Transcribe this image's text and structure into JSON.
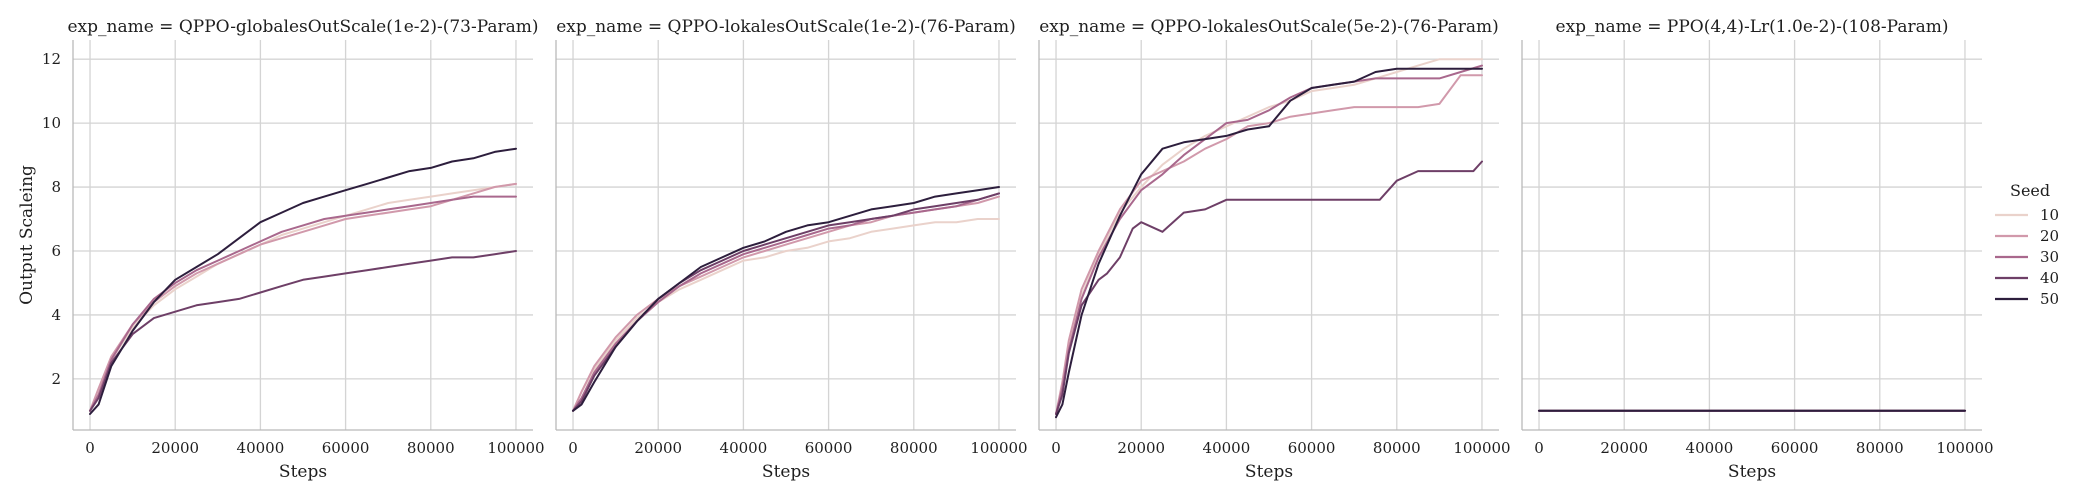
{
  "chart_data": [
    {
      "type": "line",
      "title": "exp_name = QPPO-globalesOutScale(1e-2)-(73-Param)",
      "xlabel": "Steps",
      "ylabel": "Output Scaleing",
      "xlim": [
        -4000,
        104000
      ],
      "ylim": [
        0.4,
        12.6
      ],
      "xticks": [
        0,
        20000,
        40000,
        60000,
        80000,
        100000
      ],
      "yticks": [
        2,
        4,
        6,
        8,
        10,
        12
      ],
      "grid": true,
      "series": [
        {
          "name": "10",
          "x": [
            0,
            2000,
            5000,
            10000,
            15000,
            20000,
            25000,
            30000,
            35000,
            40000,
            45000,
            50000,
            55000,
            60000,
            65000,
            70000,
            75000,
            80000,
            85000,
            90000,
            95000,
            100000
          ],
          "y": [
            1.0,
            1.6,
            2.6,
            3.6,
            4.3,
            4.8,
            5.2,
            5.6,
            5.9,
            6.2,
            6.5,
            6.7,
            6.9,
            7.1,
            7.3,
            7.5,
            7.6,
            7.7,
            7.8,
            7.9,
            8.0,
            8.1
          ]
        },
        {
          "name": "20",
          "x": [
            0,
            2000,
            5000,
            10000,
            15000,
            20000,
            25000,
            30000,
            35000,
            40000,
            45000,
            50000,
            55000,
            60000,
            65000,
            70000,
            75000,
            80000,
            85000,
            90000,
            95000,
            100000
          ],
          "y": [
            1.0,
            1.7,
            2.7,
            3.7,
            4.4,
            4.9,
            5.3,
            5.6,
            5.9,
            6.2,
            6.4,
            6.6,
            6.8,
            7.0,
            7.1,
            7.2,
            7.3,
            7.4,
            7.6,
            7.8,
            8.0,
            8.1
          ]
        },
        {
          "name": "30",
          "x": [
            0,
            2000,
            5000,
            10000,
            15000,
            20000,
            25000,
            30000,
            35000,
            40000,
            45000,
            50000,
            55000,
            60000,
            65000,
            70000,
            75000,
            80000,
            85000,
            90000,
            95000,
            100000
          ],
          "y": [
            1.0,
            1.5,
            2.6,
            3.7,
            4.5,
            5.0,
            5.4,
            5.7,
            6.0,
            6.3,
            6.6,
            6.8,
            7.0,
            7.1,
            7.2,
            7.3,
            7.4,
            7.5,
            7.6,
            7.7,
            7.7,
            7.7
          ]
        },
        {
          "name": "40",
          "x": [
            0,
            2000,
            5000,
            10000,
            15000,
            20000,
            25000,
            30000,
            35000,
            40000,
            45000,
            50000,
            55000,
            60000,
            65000,
            70000,
            75000,
            80000,
            85000,
            90000,
            95000,
            100000
          ],
          "y": [
            1.0,
            1.4,
            2.5,
            3.4,
            3.9,
            4.1,
            4.3,
            4.4,
            4.5,
            4.7,
            4.9,
            5.1,
            5.2,
            5.3,
            5.4,
            5.5,
            5.6,
            5.7,
            5.8,
            5.8,
            5.9,
            6.0
          ]
        },
        {
          "name": "50",
          "x": [
            0,
            2000,
            5000,
            10000,
            15000,
            20000,
            25000,
            30000,
            35000,
            40000,
            45000,
            50000,
            55000,
            60000,
            65000,
            70000,
            75000,
            80000,
            85000,
            90000,
            95000,
            100000
          ],
          "y": [
            0.9,
            1.2,
            2.4,
            3.5,
            4.4,
            5.1,
            5.5,
            5.9,
            6.4,
            6.9,
            7.2,
            7.5,
            7.7,
            7.9,
            8.1,
            8.3,
            8.5,
            8.6,
            8.8,
            8.9,
            9.1,
            9.2
          ]
        }
      ]
    },
    {
      "type": "line",
      "title": "exp_name = QPPO-lokalesOutScale(1e-2)-(76-Param)",
      "xlabel": "Steps",
      "ylabel": "",
      "xlim": [
        -4000,
        104000
      ],
      "ylim": [
        0.4,
        12.6
      ],
      "xticks": [
        0,
        20000,
        40000,
        60000,
        80000,
        100000
      ],
      "yticks": [
        2,
        4,
        6,
        8,
        10,
        12
      ],
      "grid": true,
      "series": [
        {
          "name": "10",
          "x": [
            0,
            2000,
            5000,
            10000,
            15000,
            20000,
            25000,
            30000,
            35000,
            40000,
            45000,
            50000,
            55000,
            60000,
            65000,
            70000,
            75000,
            80000,
            85000,
            90000,
            95000,
            100000
          ],
          "y": [
            1.0,
            1.6,
            2.3,
            3.2,
            3.9,
            4.4,
            4.8,
            5.1,
            5.4,
            5.7,
            5.8,
            6.0,
            6.1,
            6.3,
            6.4,
            6.6,
            6.7,
            6.8,
            6.9,
            6.9,
            7.0,
            7.0
          ]
        },
        {
          "name": "20",
          "x": [
            0,
            2000,
            5000,
            10000,
            15000,
            20000,
            25000,
            30000,
            35000,
            40000,
            45000,
            50000,
            55000,
            60000,
            65000,
            70000,
            75000,
            80000,
            85000,
            90000,
            95000,
            100000
          ],
          "y": [
            1.0,
            1.6,
            2.4,
            3.3,
            4.0,
            4.5,
            4.9,
            5.2,
            5.5,
            5.8,
            6.0,
            6.2,
            6.4,
            6.6,
            6.8,
            6.9,
            7.1,
            7.2,
            7.3,
            7.4,
            7.5,
            7.7
          ]
        },
        {
          "name": "30",
          "x": [
            0,
            2000,
            5000,
            10000,
            15000,
            20000,
            25000,
            30000,
            35000,
            40000,
            45000,
            50000,
            55000,
            60000,
            65000,
            70000,
            75000,
            80000,
            85000,
            90000,
            95000,
            100000
          ],
          "y": [
            1.0,
            1.4,
            2.2,
            3.1,
            3.8,
            4.4,
            4.9,
            5.3,
            5.6,
            5.9,
            6.1,
            6.3,
            6.5,
            6.7,
            6.8,
            7.0,
            7.1,
            7.2,
            7.3,
            7.4,
            7.6,
            7.8
          ]
        },
        {
          "name": "40",
          "x": [
            0,
            2000,
            5000,
            10000,
            15000,
            20000,
            25000,
            30000,
            35000,
            40000,
            45000,
            50000,
            55000,
            60000,
            65000,
            70000,
            75000,
            80000,
            85000,
            90000,
            95000,
            100000
          ],
          "y": [
            1.0,
            1.3,
            2.1,
            3.0,
            3.8,
            4.5,
            5.0,
            5.4,
            5.7,
            6.0,
            6.2,
            6.4,
            6.6,
            6.8,
            6.9,
            7.0,
            7.1,
            7.3,
            7.4,
            7.5,
            7.6,
            7.8
          ]
        },
        {
          "name": "50",
          "x": [
            0,
            2000,
            5000,
            10000,
            15000,
            20000,
            25000,
            30000,
            35000,
            40000,
            45000,
            50000,
            55000,
            60000,
            65000,
            70000,
            75000,
            80000,
            85000,
            90000,
            95000,
            100000
          ],
          "y": [
            1.0,
            1.2,
            1.9,
            3.0,
            3.8,
            4.5,
            5.0,
            5.5,
            5.8,
            6.1,
            6.3,
            6.6,
            6.8,
            6.9,
            7.1,
            7.3,
            7.4,
            7.5,
            7.7,
            7.8,
            7.9,
            8.0
          ]
        }
      ]
    },
    {
      "type": "line",
      "title": "exp_name = QPPO-lokalesOutScale(5e-2)-(76-Param)",
      "xlabel": "Steps",
      "ylabel": "",
      "xlim": [
        -4000,
        104000
      ],
      "ylim": [
        0.4,
        12.6
      ],
      "xticks": [
        0,
        20000,
        40000,
        60000,
        80000,
        100000
      ],
      "yticks": [
        2,
        4,
        6,
        8,
        10,
        12
      ],
      "grid": true,
      "series": [
        {
          "name": "10",
          "x": [
            0,
            1500,
            3000,
            6000,
            10000,
            15000,
            20000,
            25000,
            30000,
            35000,
            40000,
            45000,
            50000,
            55000,
            60000,
            65000,
            70000,
            75000,
            80000,
            85000,
            90000,
            95000,
            100000
          ],
          "y": [
            0.9,
            1.8,
            3.0,
            4.6,
            5.9,
            7.2,
            8.0,
            8.7,
            9.2,
            9.6,
            9.9,
            10.2,
            10.5,
            10.7,
            11.0,
            11.1,
            11.2,
            11.4,
            11.6,
            11.8,
            12.0,
            12.0,
            12.0
          ]
        },
        {
          "name": "20",
          "x": [
            0,
            1500,
            3000,
            6000,
            10000,
            15000,
            20000,
            25000,
            30000,
            35000,
            40000,
            45000,
            50000,
            55000,
            60000,
            65000,
            70000,
            75000,
            80000,
            85000,
            90000,
            95000,
            100000
          ],
          "y": [
            0.9,
            1.9,
            3.2,
            4.8,
            6.0,
            7.3,
            8.2,
            8.5,
            8.8,
            9.2,
            9.5,
            9.9,
            10.0,
            10.2,
            10.3,
            10.4,
            10.5,
            10.5,
            10.5,
            10.5,
            10.6,
            11.5,
            11.5
          ]
        },
        {
          "name": "30",
          "x": [
            0,
            1500,
            3000,
            6000,
            10000,
            15000,
            20000,
            25000,
            30000,
            35000,
            40000,
            45000,
            50000,
            55000,
            60000,
            65000,
            70000,
            75000,
            80000,
            85000,
            90000,
            95000,
            100000
          ],
          "y": [
            0.9,
            1.7,
            2.9,
            4.5,
            5.8,
            7.0,
            7.9,
            8.4,
            9.0,
            9.5,
            10.0,
            10.1,
            10.4,
            10.8,
            11.1,
            11.2,
            11.3,
            11.4,
            11.4,
            11.4,
            11.4,
            11.6,
            11.8
          ]
        },
        {
          "name": "40",
          "x": [
            0,
            1500,
            3000,
            6000,
            10000,
            12000,
            15000,
            18000,
            20000,
            25000,
            30000,
            35000,
            40000,
            50000,
            60000,
            70000,
            76000,
            78000,
            80000,
            85000,
            90000,
            95000,
            98000,
            100000
          ],
          "y": [
            0.9,
            1.5,
            2.8,
            4.3,
            5.1,
            5.3,
            5.8,
            6.7,
            6.9,
            6.6,
            7.2,
            7.3,
            7.6,
            7.6,
            7.6,
            7.6,
            7.6,
            7.9,
            8.2,
            8.5,
            8.5,
            8.5,
            8.5,
            8.8
          ]
        },
        {
          "name": "50",
          "x": [
            0,
            1500,
            3000,
            6000,
            10000,
            15000,
            20000,
            25000,
            30000,
            35000,
            40000,
            45000,
            50000,
            55000,
            60000,
            65000,
            70000,
            75000,
            80000,
            85000,
            90000,
            95000,
            100000
          ],
          "y": [
            0.8,
            1.2,
            2.2,
            4.0,
            5.6,
            7.1,
            8.4,
            9.2,
            9.4,
            9.5,
            9.6,
            9.8,
            9.9,
            10.7,
            11.1,
            11.2,
            11.3,
            11.6,
            11.7,
            11.7,
            11.7,
            11.7,
            11.7
          ]
        }
      ]
    },
    {
      "type": "line",
      "title": "exp_name = PPO(4,4)-Lr(1.0e-2)-(108-Param)",
      "xlabel": "Steps",
      "ylabel": "",
      "xlim": [
        -4000,
        104000
      ],
      "ylim": [
        0.4,
        12.6
      ],
      "xticks": [
        0,
        20000,
        40000,
        60000,
        80000,
        100000
      ],
      "yticks": [
        2,
        4,
        6,
        8,
        10,
        12
      ],
      "grid": true,
      "series": [
        {
          "name": "10",
          "x": [
            0,
            100000
          ],
          "y": [
            1.0,
            1.0
          ]
        },
        {
          "name": "20",
          "x": [
            0,
            100000
          ],
          "y": [
            1.0,
            1.0
          ]
        },
        {
          "name": "30",
          "x": [
            0,
            100000
          ],
          "y": [
            1.0,
            1.0
          ]
        },
        {
          "name": "40",
          "x": [
            0,
            100000
          ],
          "y": [
            1.0,
            1.0
          ]
        },
        {
          "name": "50",
          "x": [
            0,
            100000
          ],
          "y": [
            1.0,
            1.0
          ]
        }
      ]
    }
  ],
  "legend": {
    "title": "Seed",
    "placement": "right",
    "entries": [
      {
        "label": "10",
        "color": "#ead2cb"
      },
      {
        "label": "20",
        "color": "#d199ab"
      },
      {
        "label": "30",
        "color": "#a9688d"
      },
      {
        "label": "40",
        "color": "#6e3f67"
      },
      {
        "label": "50",
        "color": "#2d1e3d"
      }
    ]
  }
}
